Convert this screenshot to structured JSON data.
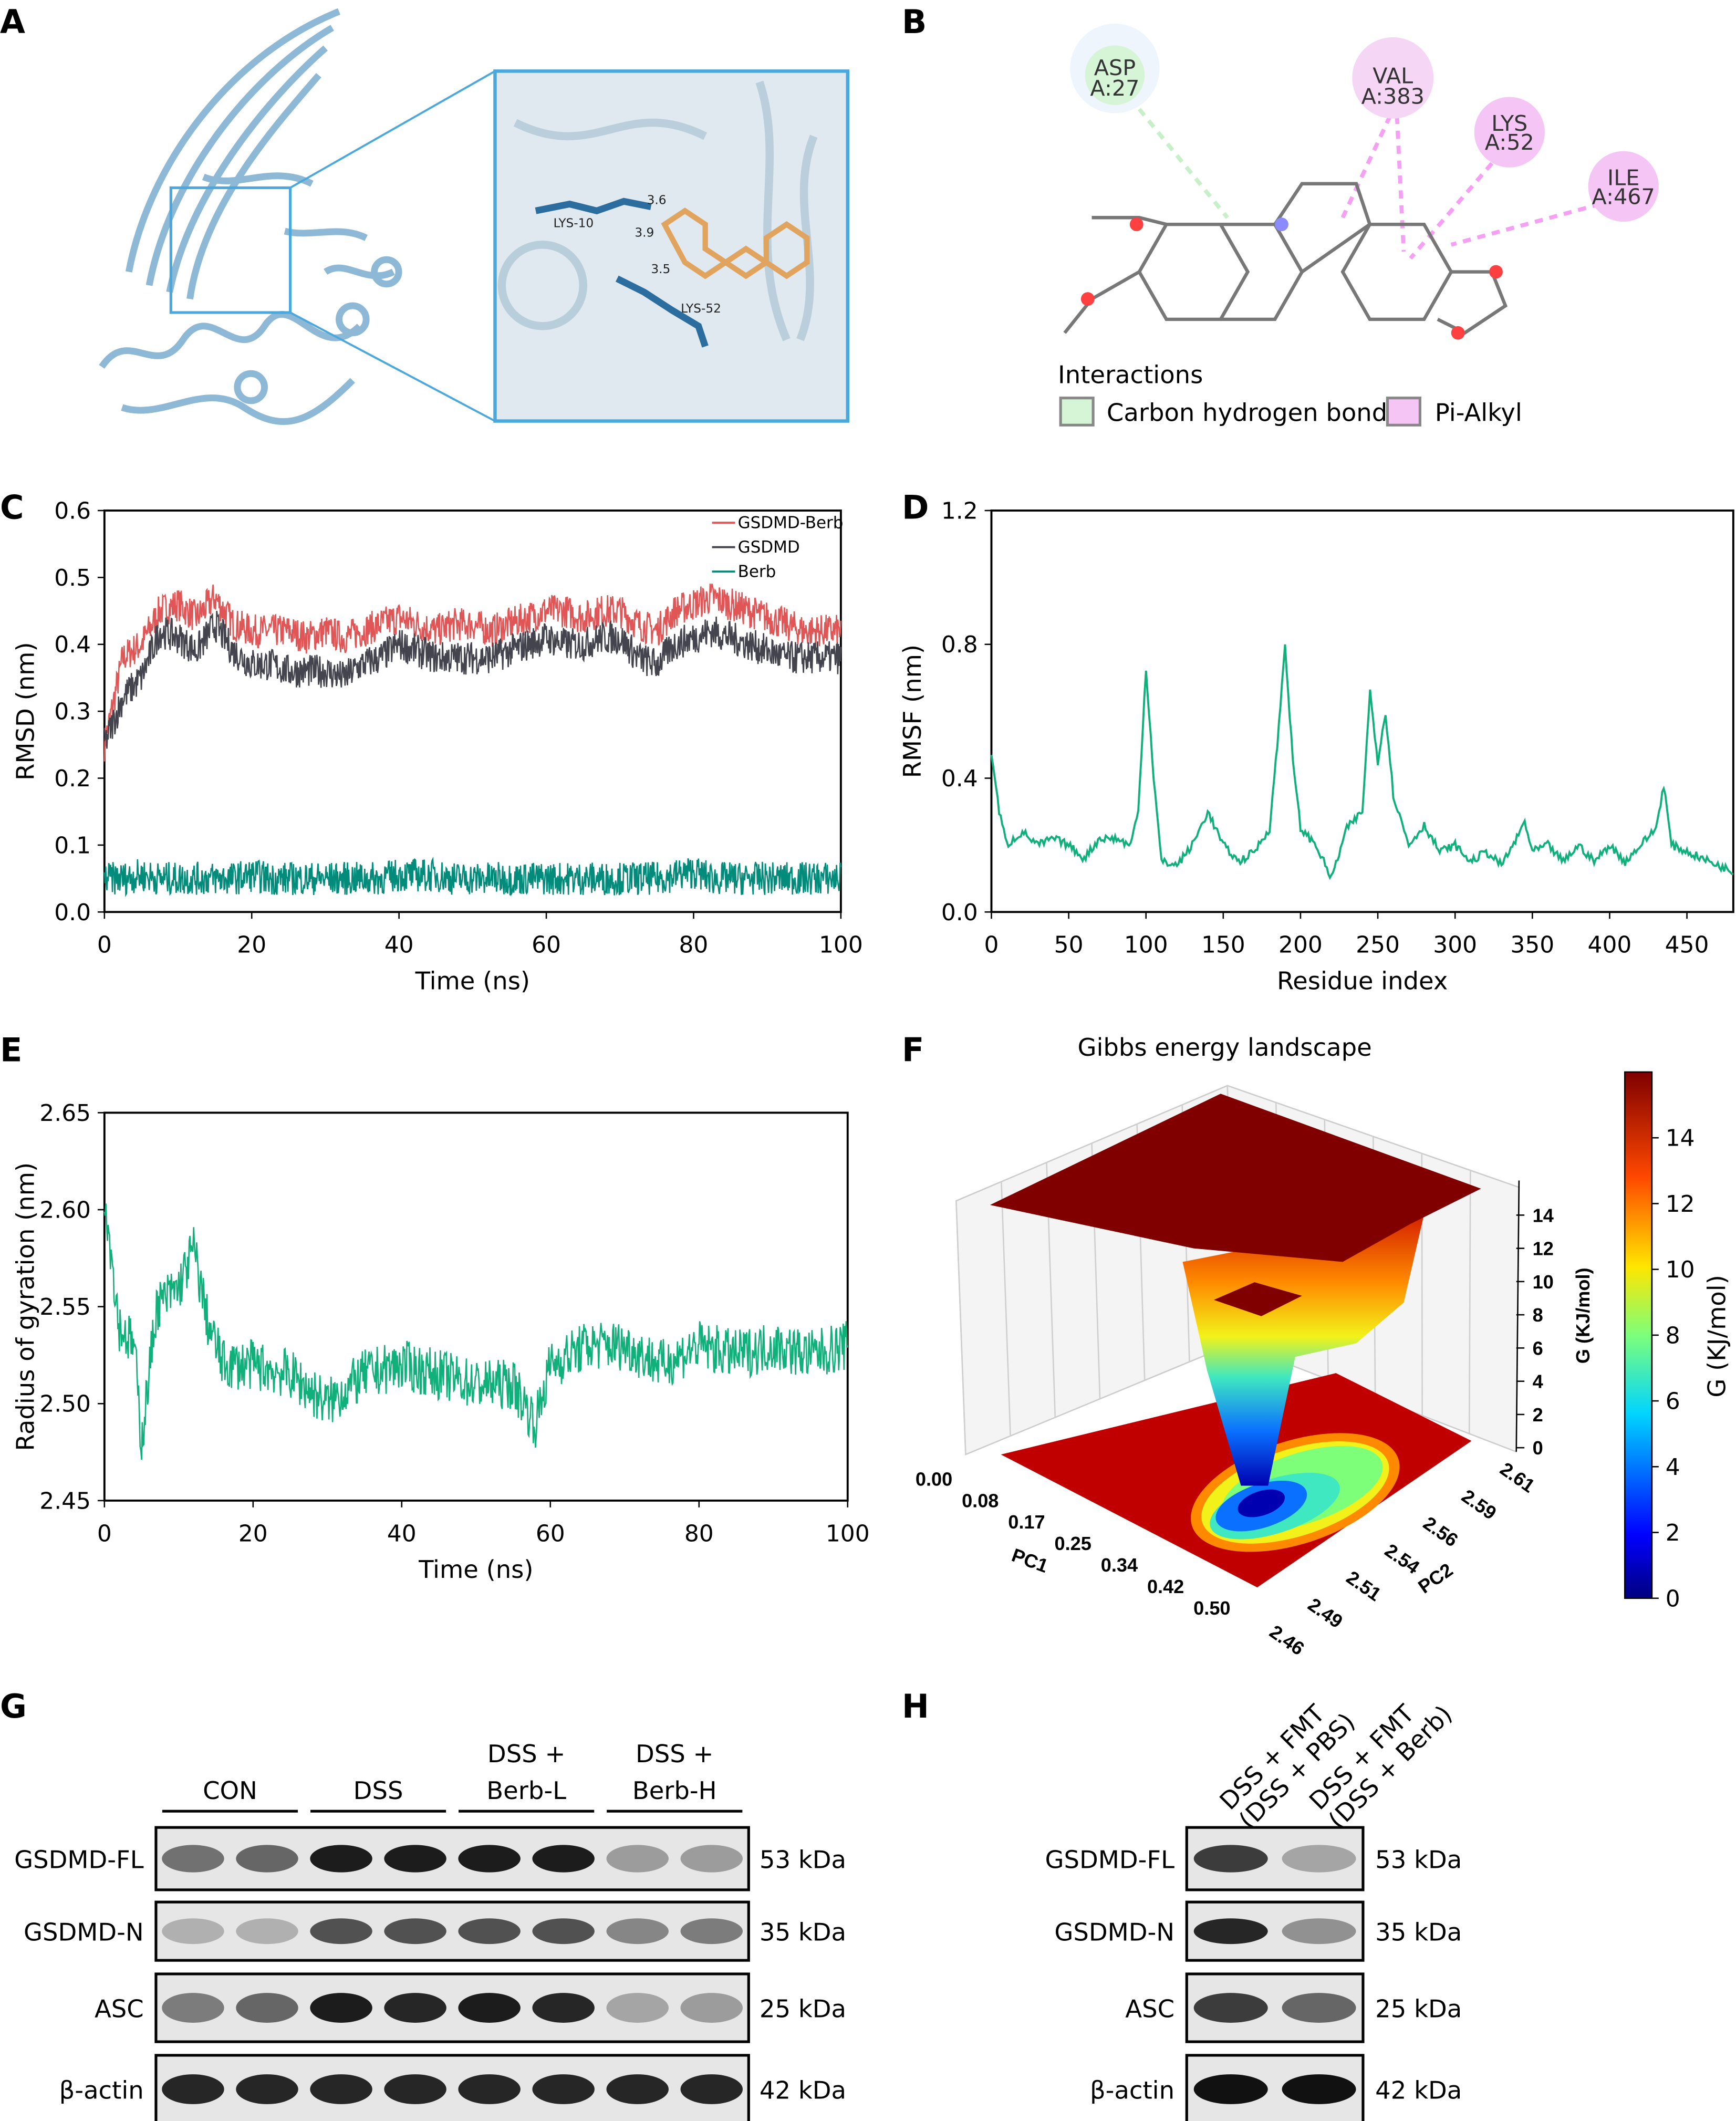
{
  "panels": {
    "A": {
      "label": "A",
      "residues": [
        "LYS-10",
        "LYS-52"
      ],
      "distances": [
        "3.6",
        "3.9",
        "3.5"
      ],
      "colors": {
        "protein": "#8db8d6",
        "ligand": "#e0a45e",
        "residue": "#2c6da0",
        "inset_border": "#4aa8dc"
      }
    },
    "B": {
      "label": "B",
      "residues": [
        {
          "name": "ASP",
          "id": "A:27",
          "type": "carbon-hydrogen"
        },
        {
          "name": "VAL",
          "id": "A:383",
          "type": "pi-alkyl"
        },
        {
          "name": "LYS",
          "id": "A:52",
          "type": "pi-alkyl"
        },
        {
          "name": "ILE",
          "id": "A:467",
          "type": "pi-alkyl"
        }
      ],
      "legend_title": "Interactions",
      "legend": [
        {
          "label": "Carbon hydrogen bond",
          "color": "#d6f5d6"
        },
        {
          "label": "Pi-Alkyl",
          "color": "#f5c6f5"
        }
      ]
    },
    "G": {
      "label": "G",
      "groups": [
        "CON",
        "DSS",
        "DSS +\nBerb-L",
        "DSS +\nBerb-H"
      ],
      "group_lines": [
        [
          "CON"
        ],
        [
          "DSS"
        ],
        [
          "DSS +",
          "Berb-L"
        ],
        [
          "DSS +",
          "Berb-H"
        ]
      ],
      "rows": [
        {
          "protein": "GSDMD-FL",
          "size": "53 kDa",
          "intensity": [
            0.55,
            0.6,
            0.95,
            0.95,
            0.95,
            0.95,
            0.35,
            0.35
          ]
        },
        {
          "protein": "GSDMD-N",
          "size": "35 kDa",
          "intensity": [
            0.25,
            0.25,
            0.7,
            0.7,
            0.7,
            0.7,
            0.45,
            0.5
          ]
        },
        {
          "protein": "ASC",
          "size": "25 kDa",
          "intensity": [
            0.5,
            0.6,
            0.95,
            0.9,
            0.95,
            0.9,
            0.3,
            0.35
          ]
        },
        {
          "protein": "β-actin",
          "size": "42 kDa",
          "intensity": [
            0.9,
            0.9,
            0.9,
            0.9,
            0.9,
            0.9,
            0.9,
            0.9
          ]
        }
      ]
    },
    "H": {
      "label": "H",
      "groups": [
        [
          "DSS + FMT",
          "(DSS + PBS)"
        ],
        [
          "DSS + FMT",
          "(DSS + Berb)"
        ]
      ],
      "rows": [
        {
          "protein": "GSDMD-FL",
          "size": "53 kDa",
          "intensity": [
            0.8,
            0.3
          ]
        },
        {
          "protein": "GSDMD-N",
          "size": "35 kDa",
          "intensity": [
            0.9,
            0.4
          ]
        },
        {
          "protein": "ASC",
          "size": "25 kDa",
          "intensity": [
            0.8,
            0.6
          ]
        },
        {
          "protein": "β-actin",
          "size": "42 kDa",
          "intensity": [
            1.0,
            1.0
          ]
        }
      ]
    }
  },
  "chart_data": [
    {
      "panel": "C",
      "type": "line",
      "xlabel": "Time (ns)",
      "ylabel": "RMSD (nm)",
      "xlim": [
        0,
        100
      ],
      "ylim": [
        0,
        0.6
      ],
      "xticks": [
        0,
        20,
        40,
        60,
        80,
        100
      ],
      "yticks": [
        "0.0",
        "0.1",
        "0.2",
        "0.3",
        "0.4",
        "0.5",
        "0.6"
      ],
      "legend_position": "top-right",
      "grid": false,
      "x": [
        0,
        2.5,
        5,
        7.5,
        10,
        12.5,
        15,
        17.5,
        20,
        22.5,
        25,
        27.5,
        30,
        32.5,
        35,
        37.5,
        40,
        42.5,
        45,
        47.5,
        50,
        52.5,
        55,
        57.5,
        60,
        62.5,
        65,
        67.5,
        70,
        72.5,
        75,
        77.5,
        80,
        82.5,
        85,
        87.5,
        90,
        92.5,
        95,
        97.5,
        100
      ],
      "series": [
        {
          "name": "GSDMD-Berb",
          "color": "#e05555",
          "values": [
            0.25,
            0.38,
            0.4,
            0.45,
            0.46,
            0.44,
            0.47,
            0.43,
            0.42,
            0.42,
            0.42,
            0.41,
            0.42,
            0.41,
            0.42,
            0.43,
            0.44,
            0.43,
            0.42,
            0.43,
            0.43,
            0.42,
            0.43,
            0.44,
            0.45,
            0.45,
            0.44,
            0.45,
            0.45,
            0.43,
            0.42,
            0.45,
            0.46,
            0.47,
            0.46,
            0.45,
            0.44,
            0.43,
            0.42,
            0.42,
            0.42
          ]
        },
        {
          "name": "GSDMD",
          "color": "#44444f",
          "values": [
            0.25,
            0.32,
            0.35,
            0.42,
            0.41,
            0.39,
            0.43,
            0.39,
            0.37,
            0.37,
            0.36,
            0.36,
            0.36,
            0.35,
            0.37,
            0.38,
            0.4,
            0.39,
            0.38,
            0.38,
            0.38,
            0.38,
            0.39,
            0.4,
            0.41,
            0.4,
            0.4,
            0.41,
            0.41,
            0.38,
            0.37,
            0.4,
            0.41,
            0.42,
            0.41,
            0.4,
            0.39,
            0.38,
            0.38,
            0.38,
            0.38
          ]
        },
        {
          "name": "Berb",
          "color": "#008b7a",
          "values": [
            0.05,
            0.05,
            0.055,
            0.05,
            0.05,
            0.05,
            0.05,
            0.05,
            0.055,
            0.05,
            0.05,
            0.05,
            0.05,
            0.05,
            0.05,
            0.05,
            0.055,
            0.055,
            0.055,
            0.05,
            0.05,
            0.05,
            0.05,
            0.05,
            0.05,
            0.05,
            0.05,
            0.05,
            0.05,
            0.05,
            0.05,
            0.055,
            0.06,
            0.05,
            0.05,
            0.05,
            0.05,
            0.05,
            0.05,
            0.05,
            0.05
          ]
        }
      ]
    },
    {
      "panel": "D",
      "type": "line",
      "xlabel": "Residue index",
      "ylabel": "RMSF (nm)",
      "xlim": [
        0,
        480
      ],
      "ylim": [
        0,
        1.2
      ],
      "xticks": [
        0,
        50,
        100,
        150,
        200,
        250,
        300,
        350,
        400,
        450
      ],
      "yticks": [
        "0.0",
        "0.4",
        "0.8",
        "1.2"
      ],
      "grid": false,
      "series": [
        {
          "color": "#10b07a",
          "points": [
            [
              0,
              0.48
            ],
            [
              5,
              0.3
            ],
            [
              10,
              0.2
            ],
            [
              20,
              0.24
            ],
            [
              30,
              0.2
            ],
            [
              40,
              0.22
            ],
            [
              50,
              0.2
            ],
            [
              60,
              0.16
            ],
            [
              70,
              0.22
            ],
            [
              80,
              0.22
            ],
            [
              90,
              0.2
            ],
            [
              95,
              0.3
            ],
            [
              100,
              0.73
            ],
            [
              105,
              0.4
            ],
            [
              110,
              0.15
            ],
            [
              120,
              0.14
            ],
            [
              130,
              0.2
            ],
            [
              140,
              0.3
            ],
            [
              150,
              0.2
            ],
            [
              160,
              0.15
            ],
            [
              170,
              0.18
            ],
            [
              180,
              0.25
            ],
            [
              185,
              0.5
            ],
            [
              190,
              0.8
            ],
            [
              195,
              0.45
            ],
            [
              200,
              0.25
            ],
            [
              210,
              0.2
            ],
            [
              220,
              0.1
            ],
            [
              230,
              0.25
            ],
            [
              240,
              0.3
            ],
            [
              245,
              0.66
            ],
            [
              250,
              0.45
            ],
            [
              255,
              0.6
            ],
            [
              260,
              0.35
            ],
            [
              270,
              0.2
            ],
            [
              280,
              0.26
            ],
            [
              290,
              0.18
            ],
            [
              300,
              0.2
            ],
            [
              310,
              0.15
            ],
            [
              320,
              0.18
            ],
            [
              330,
              0.14
            ],
            [
              340,
              0.22
            ],
            [
              345,
              0.27
            ],
            [
              350,
              0.18
            ],
            [
              360,
              0.2
            ],
            [
              370,
              0.15
            ],
            [
              380,
              0.2
            ],
            [
              390,
              0.15
            ],
            [
              400,
              0.2
            ],
            [
              410,
              0.15
            ],
            [
              420,
              0.2
            ],
            [
              430,
              0.25
            ],
            [
              435,
              0.38
            ],
            [
              440,
              0.2
            ],
            [
              450,
              0.18
            ],
            [
              460,
              0.16
            ],
            [
              470,
              0.14
            ],
            [
              480,
              0.12
            ]
          ]
        }
      ]
    },
    {
      "panel": "E",
      "type": "line",
      "xlabel": "Time (ns)",
      "ylabel": "Radius of gyration (nm)",
      "xlim": [
        0,
        100
      ],
      "ylim": [
        2.45,
        2.65
      ],
      "xticks": [
        0,
        20,
        40,
        60,
        80,
        100
      ],
      "yticks": [
        "2.45",
        "2.50",
        "2.55",
        "2.60",
        "2.65"
      ],
      "grid": false,
      "series": [
        {
          "color": "#10b07a",
          "points": [
            [
              0,
              2.61
            ],
            [
              2,
              2.54
            ],
            [
              4,
              2.53
            ],
            [
              5,
              2.48
            ],
            [
              7,
              2.55
            ],
            [
              10,
              2.56
            ],
            [
              12,
              2.58
            ],
            [
              14,
              2.54
            ],
            [
              16,
              2.52
            ],
            [
              20,
              2.52
            ],
            [
              25,
              2.515
            ],
            [
              30,
              2.5
            ],
            [
              35,
              2.515
            ],
            [
              40,
              2.52
            ],
            [
              45,
              2.515
            ],
            [
              50,
              2.51
            ],
            [
              55,
              2.51
            ],
            [
              58,
              2.49
            ],
            [
              60,
              2.52
            ],
            [
              65,
              2.53
            ],
            [
              70,
              2.53
            ],
            [
              75,
              2.52
            ],
            [
              80,
              2.53
            ],
            [
              85,
              2.525
            ],
            [
              90,
              2.53
            ],
            [
              95,
              2.525
            ],
            [
              100,
              2.53
            ]
          ]
        }
      ]
    },
    {
      "panel": "F",
      "type": "surface",
      "title": "Gibbs energy landscape",
      "xlabel": "PC1",
      "ylabel": "PC2",
      "zlabel": "G (KJ/mol)",
      "colorbar_label": "G (KJ/mol)",
      "xticks": [
        "0.00",
        "0.08",
        "0.17",
        "0.25",
        "0.34",
        "0.42",
        "0.50"
      ],
      "yticks": [
        "2.46",
        "2.49",
        "2.51",
        "2.54",
        "2.56",
        "2.59",
        "2.61"
      ],
      "zticks": [
        "0",
        "2",
        "4",
        "6",
        "8",
        "10",
        "12",
        "14"
      ],
      "colorbar_ticks": [
        "0",
        "2",
        "4",
        "6",
        "8",
        "10",
        "12",
        "14"
      ],
      "zlim": [
        0,
        16
      ],
      "colormap": "jet",
      "minimum": {
        "PC1": 0.3,
        "PC2": 2.52,
        "G": 0
      }
    }
  ]
}
